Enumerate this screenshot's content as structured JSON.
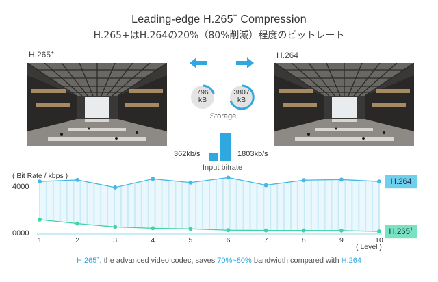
{
  "header": {
    "title": "Leading-edge H.265",
    "title_sup": "+",
    "title_suffix": " Compression",
    "subtitle": "H.265+はH.264の20%（80%削減）程度のビットレート"
  },
  "panels": {
    "left_label": "H.265",
    "left_label_sup": "+",
    "right_label": "H.264"
  },
  "storage": {
    "left_value": "796",
    "left_unit": "kB",
    "right_value": "3807",
    "right_unit": "kB",
    "label": "Storage"
  },
  "bitrate": {
    "left_value": "362kb/s",
    "right_value": "1803kb/s",
    "label": "Input bitrate"
  },
  "footer": {
    "codec1": "H.265",
    "codec1_sup": "+",
    "text1": ", the advanced video codec, saves ",
    "highlight": "70%~80%",
    "text2": " bandwidth compared with ",
    "codec2": "H.264"
  },
  "colors": {
    "accent_blue": "#2fa7df",
    "h264_line": "#45b8e6",
    "h265_line": "#3fd3a6",
    "h264_tag": "#6fd0ee",
    "h265_tag": "#78e3c0"
  },
  "chart_data": {
    "type": "line",
    "ylabel": "( Bit Rate / kbps )",
    "xlabel": "( Level )",
    "x": [
      1,
      2,
      3,
      4,
      5,
      6,
      7,
      8,
      9,
      10
    ],
    "y_tick_labels": [
      "4000",
      "0000"
    ],
    "ylim": [
      0,
      5000
    ],
    "grid": false,
    "series": [
      {
        "name": "H.264",
        "values": [
          4000,
          4120,
          3550,
          4200,
          3920,
          4300,
          3720,
          4100,
          4150,
          4000
        ]
      },
      {
        "name": "H.265",
        "name_sup": "+",
        "values": [
          1100,
          800,
          550,
          450,
          400,
          300,
          280,
          280,
          270,
          200
        ]
      }
    ]
  }
}
